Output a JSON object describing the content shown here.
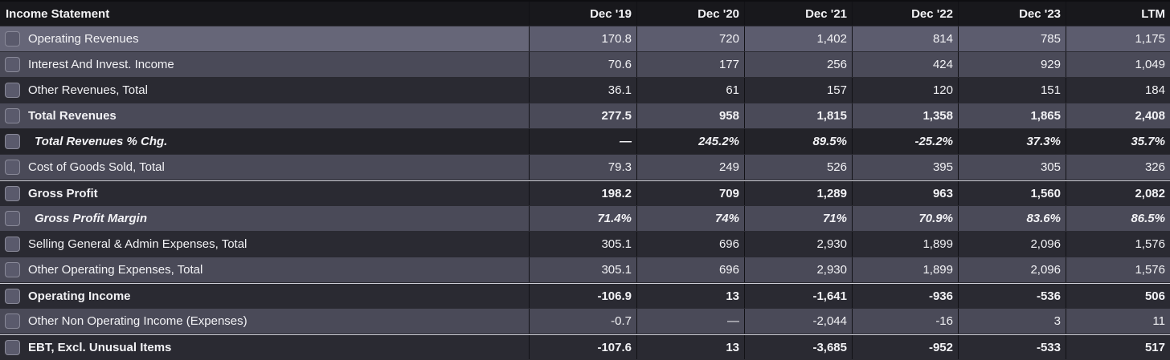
{
  "table": {
    "header": {
      "title": "Income Statement",
      "columns": [
        "Dec '19",
        "Dec '20",
        "Dec '21",
        "Dec '22",
        "Dec '23",
        "LTM"
      ]
    },
    "rows": [
      {
        "label": "Operating Revenues",
        "values": [
          "170.8",
          "720",
          "1,402",
          "814",
          "785",
          "1,175"
        ]
      },
      {
        "label": "Interest And Invest. Income",
        "values": [
          "70.6",
          "177",
          "256",
          "424",
          "929",
          "1,049"
        ]
      },
      {
        "label": "Other Revenues, Total",
        "values": [
          "36.1",
          "61",
          "157",
          "120",
          "151",
          "184"
        ]
      },
      {
        "label": "Total Revenues",
        "values": [
          "277.5",
          "958",
          "1,815",
          "1,358",
          "1,865",
          "2,408"
        ]
      },
      {
        "label": "Total Revenues % Chg.",
        "values": [
          "—",
          "245.2%",
          "89.5%",
          "-25.2%",
          "37.3%",
          "35.7%"
        ]
      },
      {
        "label": "Cost of Goods Sold, Total",
        "values": [
          "79.3",
          "249",
          "526",
          "395",
          "305",
          "326"
        ]
      },
      {
        "label": "Gross Profit",
        "values": [
          "198.2",
          "709",
          "1,289",
          "963",
          "1,560",
          "2,082"
        ]
      },
      {
        "label": "Gross Profit Margin",
        "values": [
          "71.4%",
          "74%",
          "71%",
          "70.9%",
          "83.6%",
          "86.5%"
        ]
      },
      {
        "label": "Selling General & Admin Expenses, Total",
        "values": [
          "305.1",
          "696",
          "2,930",
          "1,899",
          "2,096",
          "1,576"
        ]
      },
      {
        "label": "Other Operating Expenses, Total",
        "values": [
          "305.1",
          "696",
          "2,930",
          "1,899",
          "2,096",
          "1,576"
        ]
      },
      {
        "label": "Operating Income",
        "values": [
          "-106.9",
          "13",
          "-1,641",
          "-936",
          "-536",
          "506"
        ]
      },
      {
        "label": "Other Non Operating Income (Expenses)",
        "values": [
          "-0.7",
          "—",
          "-2,044",
          "-16",
          "3",
          "11"
        ]
      },
      {
        "label": "EBT, Excl. Unusual Items",
        "values": [
          "-107.6",
          "13",
          "-3,685",
          "-952",
          "-533",
          "517"
        ]
      }
    ]
  }
}
